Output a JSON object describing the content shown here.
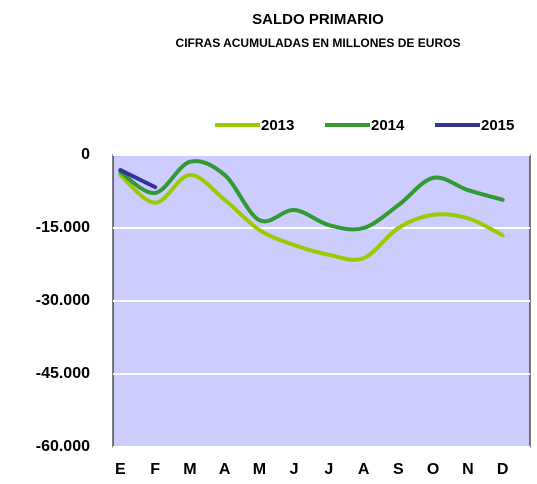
{
  "chart_data": {
    "type": "line",
    "title": "SALDO PRIMARIO",
    "subtitle": "CIFRAS ACUMULADAS EN MILLONES DE EUROS",
    "categories": [
      "E",
      "F",
      "M",
      "A",
      "M",
      "J",
      "J",
      "A",
      "S",
      "O",
      "N",
      "D"
    ],
    "series": [
      {
        "name": "2013",
        "color": "#99cc00",
        "values": [
          -4100,
          -9800,
          -4100,
          -9200,
          -15400,
          -18500,
          -20500,
          -21200,
          -15000,
          -12300,
          -13000,
          -16500
        ]
      },
      {
        "name": "2014",
        "color": "#339933",
        "values": [
          -3500,
          -7800,
          -1400,
          -4100,
          -13400,
          -11300,
          -14400,
          -15000,
          -10300,
          -4700,
          -7200,
          -9200
        ]
      },
      {
        "name": "2015",
        "color": "#333399",
        "values": [
          -3100,
          -6600,
          null,
          null,
          null,
          null,
          null,
          null,
          null,
          null,
          null,
          null
        ]
      }
    ],
    "ylim": [
      -60000,
      0
    ],
    "yticks": [
      {
        "value": -60000,
        "label": "-60.000"
      },
      {
        "value": -45000,
        "label": "-45.000"
      },
      {
        "value": -30000,
        "label": "-30.000"
      },
      {
        "value": -15000,
        "label": "-15.000"
      },
      0
    ],
    "grid": true,
    "legend": "top",
    "plot_color": "#ccccff"
  }
}
